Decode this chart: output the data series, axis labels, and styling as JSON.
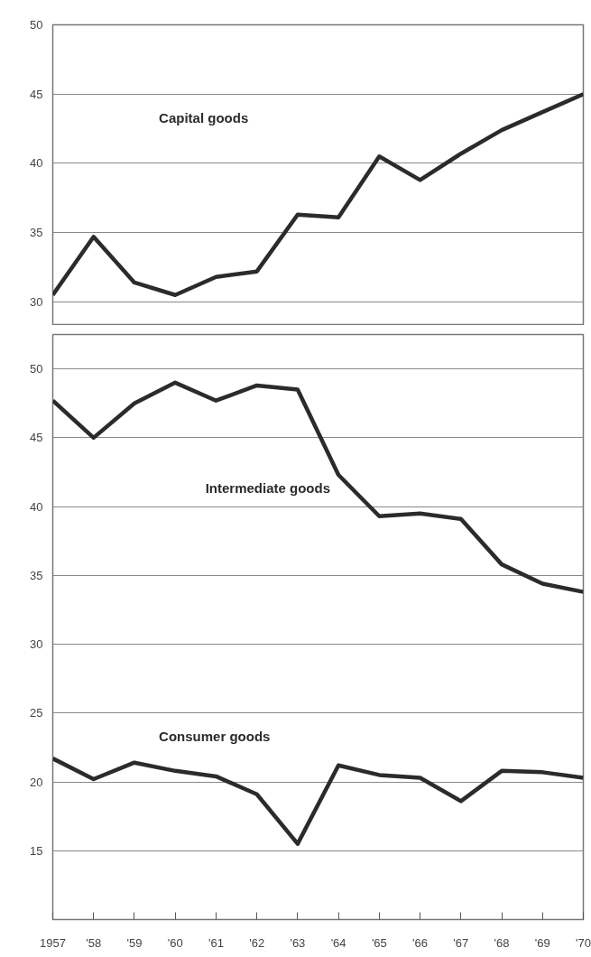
{
  "chart_data": [
    {
      "type": "line",
      "x": [
        1957,
        1958,
        1959,
        1960,
        1961,
        1962,
        1963,
        1964,
        1965,
        1966,
        1967,
        1968,
        1969,
        1970
      ],
      "xlim": [
        1957,
        1970
      ],
      "ylim": [
        28.3,
        50
      ],
      "yticks": [
        30,
        35,
        40,
        45,
        50
      ],
      "grid": "y",
      "tick_labels": "y",
      "series": [
        {
          "name": "Capital goods",
          "color": "#2b2b2b",
          "values": [
            30.5,
            34.7,
            31.4,
            30.5,
            31.8,
            32.2,
            36.3,
            36.1,
            40.5,
            38.8,
            40.7,
            42.4,
            43.7,
            45.0
          ]
        }
      ]
    },
    {
      "type": "line",
      "x": [
        1957,
        1958,
        1959,
        1960,
        1961,
        1962,
        1963,
        1964,
        1965,
        1966,
        1967,
        1968,
        1969,
        1970
      ],
      "xlim": [
        1957,
        1970
      ],
      "ylim": [
        10,
        52.5
      ],
      "yticks": [
        15,
        20,
        25,
        30,
        35,
        40,
        45,
        50
      ],
      "grid": "y",
      "xticks": [
        {
          "value": 1957,
          "label": "1957"
        },
        {
          "value": 1958,
          "label": "'58"
        },
        {
          "value": 1959,
          "label": "'59"
        },
        {
          "value": 1960,
          "label": "'60"
        },
        {
          "value": 1961,
          "label": "'61"
        },
        {
          "value": 1962,
          "label": "'62"
        },
        {
          "value": 1963,
          "label": "'63"
        },
        {
          "value": 1964,
          "label": "'64"
        },
        {
          "value": 1965,
          "label": "'65"
        },
        {
          "value": 1966,
          "label": "'66"
        },
        {
          "value": 1967,
          "label": "'67"
        },
        {
          "value": 1968,
          "label": "'68"
        },
        {
          "value": 1969,
          "label": "'69"
        },
        {
          "value": 1970,
          "label": "'70"
        }
      ],
      "series": [
        {
          "name": "Intermediate goods",
          "color": "#2b2b2b",
          "values": [
            47.7,
            45.0,
            47.5,
            49.0,
            47.7,
            48.8,
            48.5,
            42.3,
            39.3,
            39.5,
            39.1,
            35.8,
            34.4,
            33.8
          ]
        },
        {
          "name": "Consumer goods",
          "color": "#2b2b2b",
          "values": [
            21.7,
            20.2,
            21.4,
            20.8,
            20.4,
            19.1,
            15.5,
            21.2,
            20.5,
            20.3,
            18.6,
            20.8,
            20.7,
            20.3
          ]
        }
      ]
    }
  ]
}
